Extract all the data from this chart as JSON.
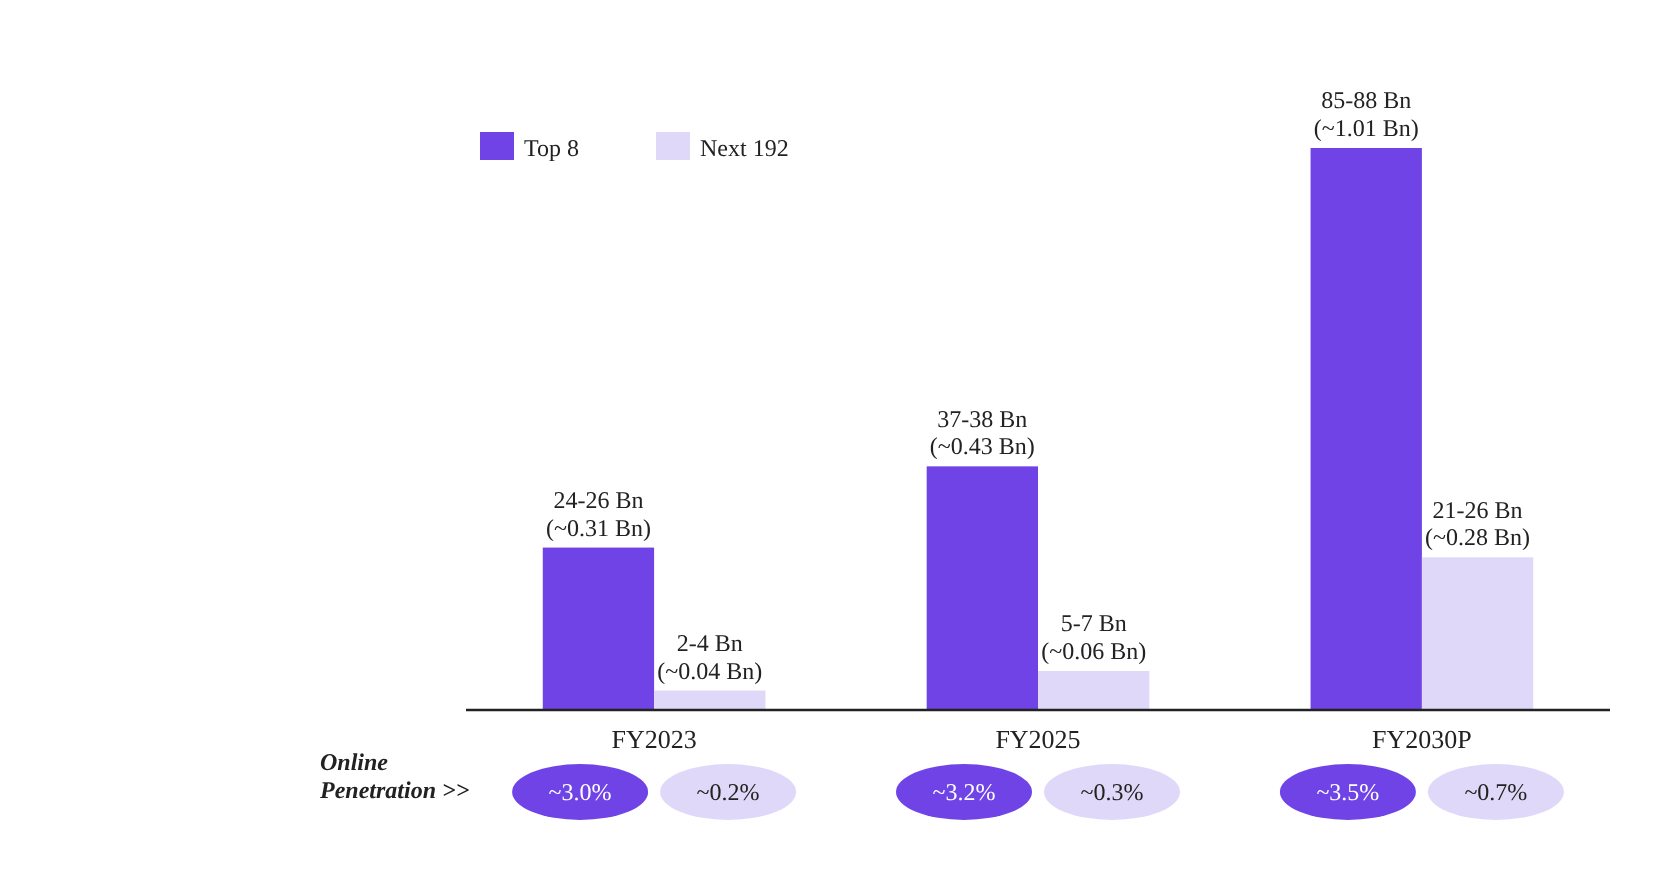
{
  "chart_data": {
    "type": "bar",
    "categories": [
      "FY2023",
      "FY2025",
      "FY2030P"
    ],
    "series": [
      {
        "name": "Top 8",
        "color": "#7043e6",
        "values": [
          25,
          37.5,
          86.5
        ],
        "value_labels": [
          "24-26 Bn\n(~0.31 Bn)",
          "37-38 Bn\n(~0.43 Bn)",
          "85-88 Bn\n(~1.01 Bn)"
        ]
      },
      {
        "name": "Next 192",
        "color": "#e0d8f8",
        "values": [
          3,
          6,
          23.5
        ],
        "value_labels": [
          "2-4 Bn\n(~0.04 Bn)",
          "5-7 Bn\n(~0.06 Bn)",
          "21-26 Bn\n(~0.28 Bn)"
        ]
      }
    ],
    "legend": "top left",
    "annotations": [
      "Online\nPenetration >>",
      "~3.0%",
      "~0.2%",
      "~3.2%",
      "~0.3%",
      "~3.5%",
      "~0.7%"
    ]
  }
}
